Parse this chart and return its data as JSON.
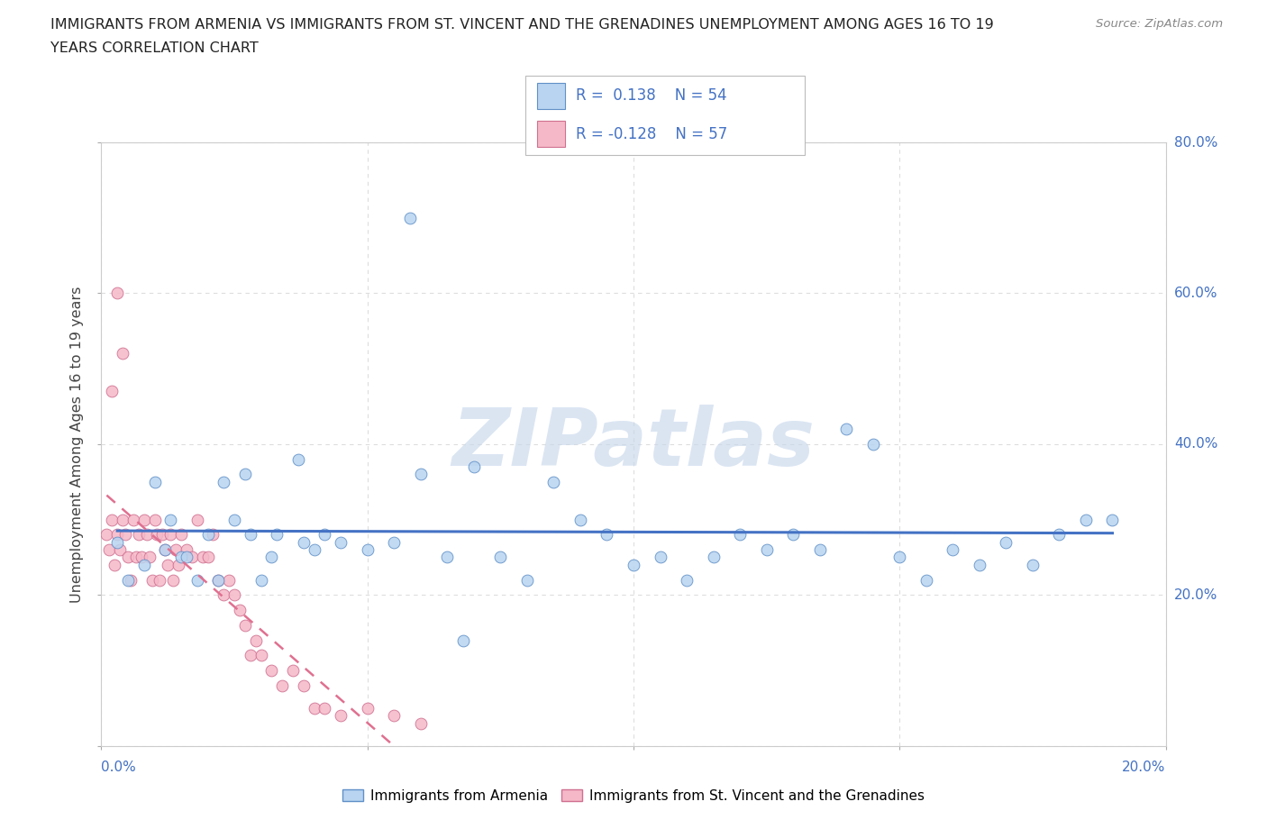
{
  "title_line1": "IMMIGRANTS FROM ARMENIA VS IMMIGRANTS FROM ST. VINCENT AND THE GRENADINES UNEMPLOYMENT AMONG AGES 16 TO 19",
  "title_line2": "YEARS CORRELATION CHART",
  "source": "Source: ZipAtlas.com",
  "ylabel": "Unemployment Among Ages 16 to 19 years",
  "legend_armenia": "Immigrants from Armenia",
  "legend_svgrenadines": "Immigrants from St. Vincent and the Grenadines",
  "R_armenia": 0.138,
  "N_armenia": 54,
  "R_svg": -0.128,
  "N_svg": 57,
  "color_armenia_fill": "#B8D4F0",
  "color_armenia_edge": "#6090C8",
  "color_svgrenadines_fill": "#F5B8C8",
  "color_svgrenadines_edge": "#D07090",
  "color_trendline_armenia": "#4472C4",
  "color_trendline_svg": "#E07090",
  "armenia_x": [
    0.3,
    0.5,
    0.8,
    1.0,
    1.2,
    1.5,
    1.8,
    2.0,
    2.3,
    2.5,
    2.8,
    3.0,
    3.3,
    3.7,
    4.0,
    4.5,
    5.0,
    5.5,
    6.0,
    6.5,
    7.0,
    7.5,
    8.0,
    8.5,
    9.0,
    9.5,
    10.0,
    10.5,
    11.0,
    11.5,
    12.0,
    12.5,
    13.0,
    13.5,
    14.0,
    14.5,
    15.0,
    15.5,
    16.0,
    16.5,
    17.0,
    17.5,
    18.0,
    18.5,
    19.0,
    1.3,
    1.6,
    2.2,
    2.7,
    3.2,
    3.8,
    4.2,
    5.8,
    6.8
  ],
  "armenia_y": [
    27,
    22,
    24,
    35,
    26,
    25,
    22,
    28,
    35,
    30,
    28,
    22,
    28,
    38,
    26,
    27,
    26,
    27,
    36,
    25,
    37,
    25,
    22,
    35,
    30,
    28,
    24,
    25,
    22,
    25,
    28,
    26,
    28,
    26,
    42,
    40,
    25,
    22,
    26,
    24,
    27,
    24,
    28,
    30,
    30,
    30,
    25,
    22,
    36,
    25,
    27,
    28,
    70,
    14
  ],
  "svgrenadines_x": [
    0.1,
    0.15,
    0.2,
    0.25,
    0.3,
    0.35,
    0.4,
    0.45,
    0.5,
    0.55,
    0.6,
    0.65,
    0.7,
    0.75,
    0.8,
    0.85,
    0.9,
    0.95,
    1.0,
    1.05,
    1.1,
    1.15,
    1.2,
    1.25,
    1.3,
    1.35,
    1.4,
    1.45,
    1.5,
    1.6,
    1.7,
    1.8,
    1.9,
    2.0,
    2.1,
    2.2,
    2.3,
    2.4,
    2.5,
    2.6,
    2.7,
    2.8,
    2.9,
    3.0,
    3.2,
    3.4,
    3.6,
    3.8,
    4.0,
    4.2,
    4.5,
    5.0,
    5.5,
    6.0,
    0.3,
    0.4,
    0.2
  ],
  "svgrenadines_y": [
    28,
    26,
    30,
    24,
    28,
    26,
    30,
    28,
    25,
    22,
    30,
    25,
    28,
    25,
    30,
    28,
    25,
    22,
    30,
    28,
    22,
    28,
    26,
    24,
    28,
    22,
    26,
    24,
    28,
    26,
    25,
    30,
    25,
    25,
    28,
    22,
    20,
    22,
    20,
    18,
    16,
    12,
    14,
    12,
    10,
    8,
    10,
    8,
    5,
    5,
    4,
    5,
    4,
    3,
    60,
    52,
    47
  ],
  "xlim": [
    0,
    20
  ],
  "ylim": [
    0,
    80
  ],
  "ytick_vals": [
    0,
    20,
    40,
    60,
    80
  ],
  "ytick_labels": [
    "",
    "20.0%",
    "40.0%",
    "60.0%",
    "80.0%"
  ],
  "grid_color": "#DDDDDD",
  "grid_linestyle": "--",
  "background_color": "#FFFFFF",
  "watermark_text": "ZIPatlas",
  "watermark_color": "#C8D8EC",
  "xtick_left_label": "0.0%",
  "xtick_right_label": "20.0%"
}
